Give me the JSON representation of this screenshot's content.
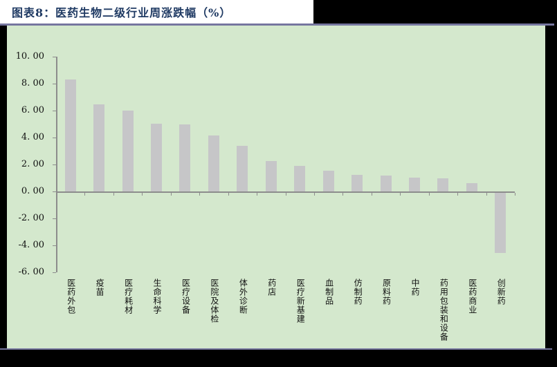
{
  "page": {
    "title": "图表8：医药生物二级行业周涨跌幅（%）"
  },
  "colors": {
    "page_bg": "#000000",
    "title_bg": "#ffffff",
    "title_text": "#1f3a63",
    "rule": "#76769f",
    "chart_bg": "#d4e8cd",
    "bar": "#c6c6c8",
    "axis": "#8c8c8c",
    "tick_text": "#111111"
  },
  "chart_data": {
    "type": "bar",
    "title": "图表8：医药生物二级行业周涨跌幅（%）",
    "categories": [
      "医药外包",
      "疫苗",
      "医疗耗材",
      "生命科学",
      "医疗设备",
      "医院及体检",
      "体外诊断",
      "药店",
      "医疗新基建",
      "血制品",
      "仿制药",
      "原料药",
      "中药",
      "药用包装和设备",
      "医药商业",
      "创新药"
    ],
    "values": [
      8.3,
      6.45,
      6.0,
      5.05,
      4.95,
      4.15,
      3.4,
      2.25,
      1.9,
      1.55,
      1.25,
      1.2,
      1.05,
      1.0,
      0.6,
      -4.5
    ],
    "xlabel": "",
    "ylabel": "",
    "ylim": [
      -6,
      10
    ],
    "ytick_step": 2,
    "ytick_labels": [
      "10. 00",
      "8. 00",
      "6. 00",
      "4. 00",
      "2. 00",
      "0. 00",
      "-2. 00",
      "-4. 00",
      "-6. 00"
    ],
    "grid": false,
    "legend_position": "none",
    "bar_orientation": "vertical",
    "category_label_orientation": "vertical"
  }
}
